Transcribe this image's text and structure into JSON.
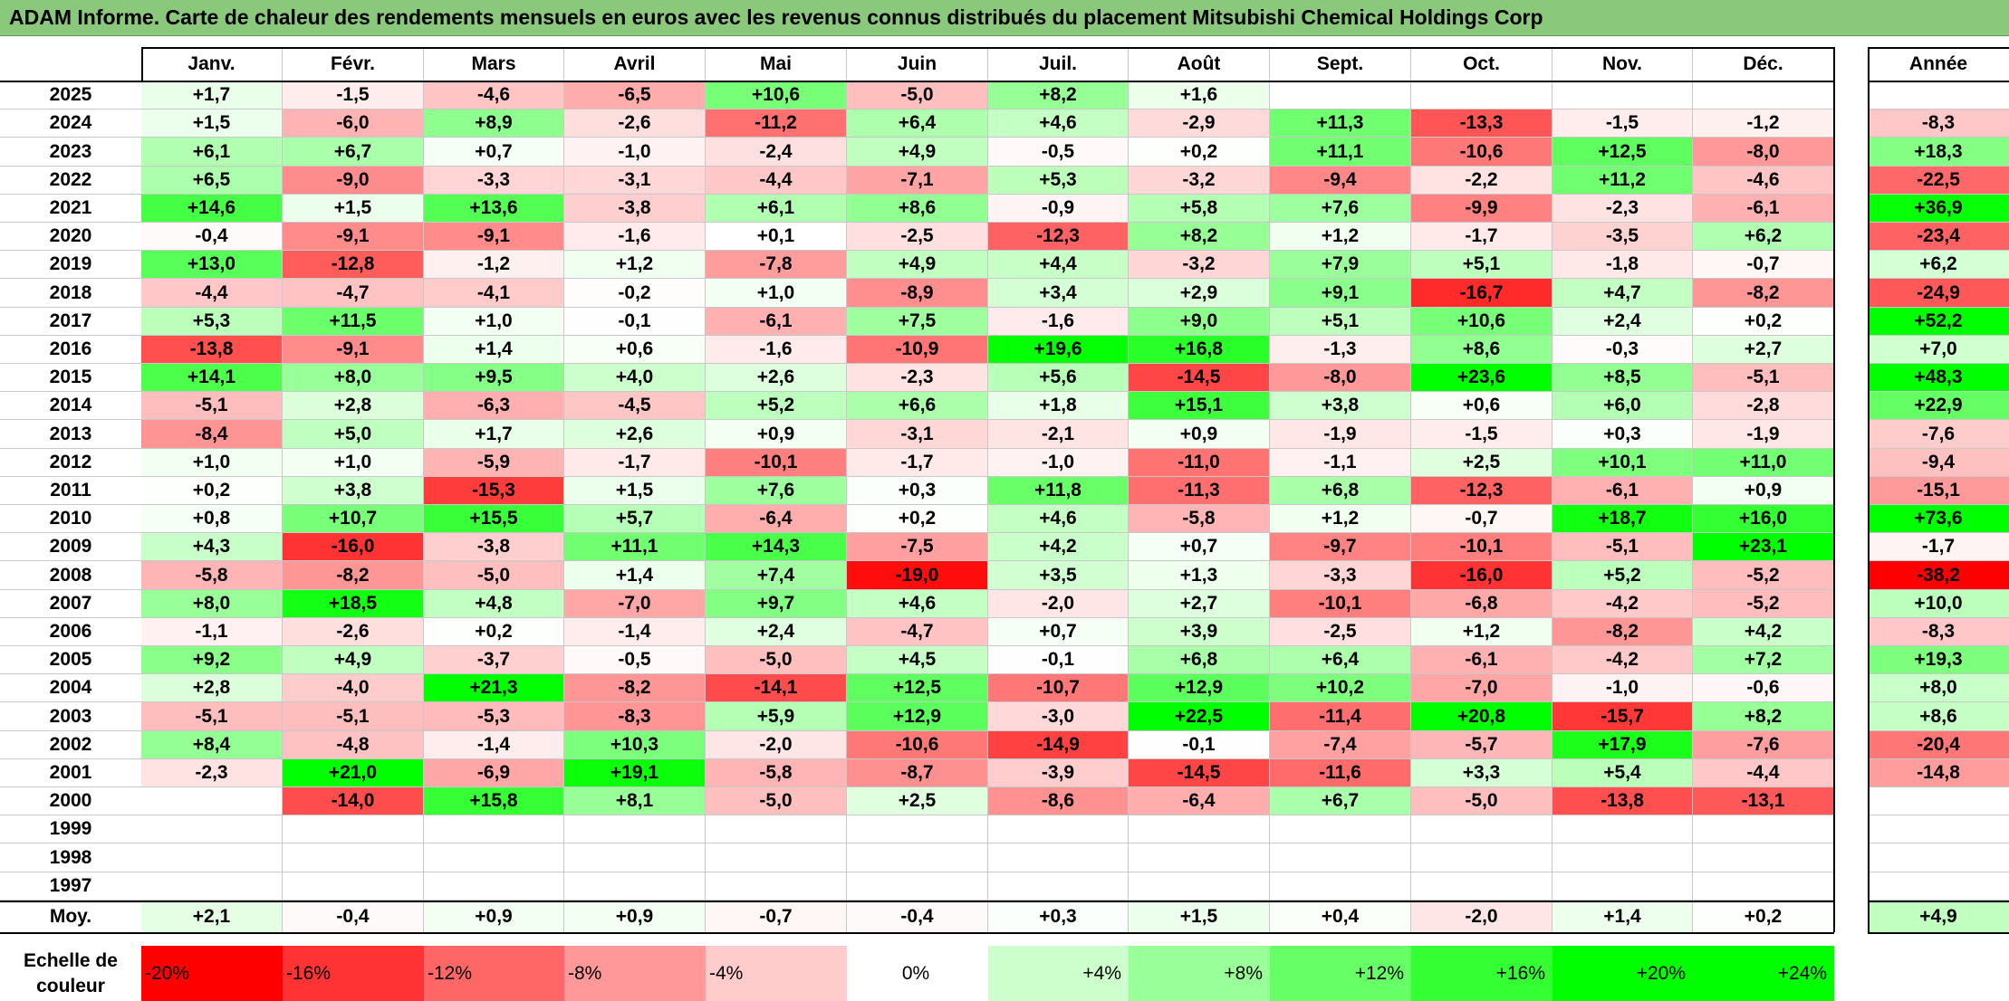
{
  "title": "ADAM Informe. Carte de chaleur des rendements mensuels en euros avec les revenus connus distribués du placement Mitsubishi Chemical Holdings Corp",
  "chart_data": {
    "type": "heatmap",
    "months": [
      "Janv.",
      "Févr.",
      "Mars",
      "Avril",
      "Mai",
      "Juin",
      "Juil.",
      "Août",
      "Sept.",
      "Oct.",
      "Nov.",
      "Déc."
    ],
    "year_col_label": "Année",
    "rows": [
      {
        "year": "2025",
        "values": [
          "+1,7",
          "-1,5",
          "-4,6",
          "-6,5",
          "+10,6",
          "-5,0",
          "+8,2",
          "+1,6",
          "",
          "",
          "",
          ""
        ],
        "annual": ""
      },
      {
        "year": "2024",
        "values": [
          "+1,5",
          "-6,0",
          "+8,9",
          "-2,6",
          "-11,2",
          "+6,4",
          "+4,6",
          "-2,9",
          "+11,3",
          "-13,3",
          "-1,5",
          "-1,2"
        ],
        "annual": "-8,3"
      },
      {
        "year": "2023",
        "values": [
          "+6,1",
          "+6,7",
          "+0,7",
          "-1,0",
          "-2,4",
          "+4,9",
          "-0,5",
          "+0,2",
          "+11,1",
          "-10,6",
          "+12,5",
          "-8,0"
        ],
        "annual": "+18,3"
      },
      {
        "year": "2022",
        "values": [
          "+6,5",
          "-9,0",
          "-3,3",
          "-3,1",
          "-4,4",
          "-7,1",
          "+5,3",
          "-3,2",
          "-9,4",
          "-2,2",
          "+11,2",
          "-4,6"
        ],
        "annual": "-22,5"
      },
      {
        "year": "2021",
        "values": [
          "+14,6",
          "+1,5",
          "+13,6",
          "-3,8",
          "+6,1",
          "+8,6",
          "-0,9",
          "+5,8",
          "+7,6",
          "-9,9",
          "-2,3",
          "-6,1"
        ],
        "annual": "+36,9"
      },
      {
        "year": "2020",
        "values": [
          "-0,4",
          "-9,1",
          "-9,1",
          "-1,6",
          "+0,1",
          "-2,5",
          "-12,3",
          "+8,2",
          "+1,2",
          "-1,7",
          "-3,5",
          "+6,2"
        ],
        "annual": "-23,4"
      },
      {
        "year": "2019",
        "values": [
          "+13,0",
          "-12,8",
          "-1,2",
          "+1,2",
          "-7,8",
          "+4,9",
          "+4,4",
          "-3,2",
          "+7,9",
          "+5,1",
          "-1,8",
          "-0,7"
        ],
        "annual": "+6,2"
      },
      {
        "year": "2018",
        "values": [
          "-4,4",
          "-4,7",
          "-4,1",
          "-0,2",
          "+1,0",
          "-8,9",
          "+3,4",
          "+2,9",
          "+9,1",
          "-16,7",
          "+4,7",
          "-8,2"
        ],
        "annual": "-24,9"
      },
      {
        "year": "2017",
        "values": [
          "+5,3",
          "+11,5",
          "+1,0",
          "-0,1",
          "-6,1",
          "+7,5",
          "-1,6",
          "+9,0",
          "+5,1",
          "+10,6",
          "+2,4",
          "+0,2"
        ],
        "annual": "+52,2"
      },
      {
        "year": "2016",
        "values": [
          "-13,8",
          "-9,1",
          "+1,4",
          "+0,6",
          "-1,6",
          "-10,9",
          "+19,6",
          "+16,8",
          "-1,3",
          "+8,6",
          "-0,3",
          "+2,7"
        ],
        "annual": "+7,0"
      },
      {
        "year": "2015",
        "values": [
          "+14,1",
          "+8,0",
          "+9,5",
          "+4,0",
          "+2,6",
          "-2,3",
          "+5,6",
          "-14,5",
          "-8,0",
          "+23,6",
          "+8,5",
          "-5,1"
        ],
        "annual": "+48,3"
      },
      {
        "year": "2014",
        "values": [
          "-5,1",
          "+2,8",
          "-6,3",
          "-4,5",
          "+5,2",
          "+6,6",
          "+1,8",
          "+15,1",
          "+3,8",
          "+0,6",
          "+6,0",
          "-2,8"
        ],
        "annual": "+22,9"
      },
      {
        "year": "2013",
        "values": [
          "-8,4",
          "+5,0",
          "+1,7",
          "+2,6",
          "+0,9",
          "-3,1",
          "-2,1",
          "+0,9",
          "-1,9",
          "-1,5",
          "+0,3",
          "-1,9"
        ],
        "annual": "-7,6"
      },
      {
        "year": "2012",
        "values": [
          "+1,0",
          "+1,0",
          "-5,9",
          "-1,7",
          "-10,1",
          "-1,7",
          "-1,0",
          "-11,0",
          "-1,1",
          "+2,5",
          "+10,1",
          "+11,0"
        ],
        "annual": "-9,4"
      },
      {
        "year": "2011",
        "values": [
          "+0,2",
          "+3,8",
          "-15,3",
          "+1,5",
          "+7,6",
          "+0,3",
          "+11,8",
          "-11,3",
          "+6,8",
          "-12,3",
          "-6,1",
          "+0,9"
        ],
        "annual": "-15,1"
      },
      {
        "year": "2010",
        "values": [
          "+0,8",
          "+10,7",
          "+15,5",
          "+5,7",
          "-6,4",
          "+0,2",
          "+4,6",
          "-5,8",
          "+1,2",
          "-0,7",
          "+18,7",
          "+16,0"
        ],
        "annual": "+73,6"
      },
      {
        "year": "2009",
        "values": [
          "+4,3",
          "-16,0",
          "-3,8",
          "+11,1",
          "+14,3",
          "-7,5",
          "+4,2",
          "+0,7",
          "-9,7",
          "-10,1",
          "-5,1",
          "+23,1"
        ],
        "annual": "-1,7"
      },
      {
        "year": "2008",
        "values": [
          "-5,8",
          "-8,2",
          "-5,0",
          "+1,4",
          "+7,4",
          "-19,0",
          "+3,5",
          "+1,3",
          "-3,3",
          "-16,0",
          "+5,2",
          "-5,2"
        ],
        "annual": "-38,2"
      },
      {
        "year": "2007",
        "values": [
          "+8,0",
          "+18,5",
          "+4,8",
          "-7,0",
          "+9,7",
          "+4,6",
          "-2,0",
          "+2,7",
          "-10,1",
          "-6,8",
          "-4,2",
          "-5,2"
        ],
        "annual": "+10,0"
      },
      {
        "year": "2006",
        "values": [
          "-1,1",
          "-2,6",
          "+0,2",
          "-1,4",
          "+2,4",
          "-4,7",
          "+0,7",
          "+3,9",
          "-2,5",
          "+1,2",
          "-8,2",
          "+4,2"
        ],
        "annual": "-8,3"
      },
      {
        "year": "2005",
        "values": [
          "+9,2",
          "+4,9",
          "-3,7",
          "-0,5",
          "-5,0",
          "+4,5",
          "-0,1",
          "+6,8",
          "+6,4",
          "-6,1",
          "-4,2",
          "+7,2"
        ],
        "annual": "+19,3"
      },
      {
        "year": "2004",
        "values": [
          "+2,8",
          "-4,0",
          "+21,3",
          "-8,2",
          "-14,1",
          "+12,5",
          "-10,7",
          "+12,9",
          "+10,2",
          "-7,0",
          "-1,0",
          "-0,6"
        ],
        "annual": "+8,0"
      },
      {
        "year": "2003",
        "values": [
          "-5,1",
          "-5,1",
          "-5,3",
          "-8,3",
          "+5,9",
          "+12,9",
          "-3,0",
          "+22,5",
          "-11,4",
          "+20,8",
          "-15,7",
          "+8,2"
        ],
        "annual": "+8,6"
      },
      {
        "year": "2002",
        "values": [
          "+8,4",
          "-4,8",
          "-1,4",
          "+10,3",
          "-2,0",
          "-10,6",
          "-14,9",
          "-0,1",
          "-7,4",
          "-5,7",
          "+17,9",
          "-7,6"
        ],
        "annual": "-20,4"
      },
      {
        "year": "2001",
        "values": [
          "-2,3",
          "+21,0",
          "-6,9",
          "+19,1",
          "-5,8",
          "-8,7",
          "-3,9",
          "-14,5",
          "-11,6",
          "+3,3",
          "+5,4",
          "-4,4"
        ],
        "annual": "-14,8"
      },
      {
        "year": "2000",
        "values": [
          "",
          "-14,0",
          "+15,8",
          "+8,1",
          "-5,0",
          "+2,5",
          "-8,6",
          "-6,4",
          "+6,7",
          "-5,0",
          "-13,8",
          "-13,1"
        ],
        "annual": ""
      },
      {
        "year": "1999",
        "values": [
          "",
          "",
          "",
          "",
          "",
          "",
          "",
          "",
          "",
          "",
          "",
          ""
        ],
        "annual": ""
      },
      {
        "year": "1998",
        "values": [
          "",
          "",
          "",
          "",
          "",
          "",
          "",
          "",
          "",
          "",
          "",
          ""
        ],
        "annual": ""
      },
      {
        "year": "1997",
        "values": [
          "",
          "",
          "",
          "",
          "",
          "",
          "",
          "",
          "",
          "",
          "",
          ""
        ],
        "annual": ""
      }
    ],
    "average": {
      "label": "Moy.",
      "values": [
        "+2,1",
        "-0,4",
        "+0,9",
        "+0,9",
        "-0,7",
        "-0,4",
        "+0,3",
        "+1,5",
        "+0,4",
        "-2,0",
        "+1,4",
        "+0,2"
      ],
      "annual": "+4,9"
    },
    "scale": {
      "label_line1": "Echelle de",
      "label_line2": "couleur",
      "stops": [
        {
          "label": "-20%",
          "value": -20
        },
        {
          "label": "-16%",
          "value": -16
        },
        {
          "label": "-12%",
          "value": -12
        },
        {
          "label": "-8%",
          "value": -8
        },
        {
          "label": "-4%",
          "value": -4
        },
        {
          "label": "0%",
          "value": 0
        },
        {
          "label": "+4%",
          "value": 4
        },
        {
          "label": "+8%",
          "value": 8
        },
        {
          "label": "+12%",
          "value": 12
        },
        {
          "label": "+16%",
          "value": 16
        },
        {
          "label": "+20%",
          "value": 20
        },
        {
          "label": "+24%",
          "value": 24
        }
      ]
    },
    "colors": {
      "negative": "#ff0000",
      "neutral": "#ffffff",
      "positive": "#00ff00",
      "title_bar": "#8ac87c"
    }
  }
}
